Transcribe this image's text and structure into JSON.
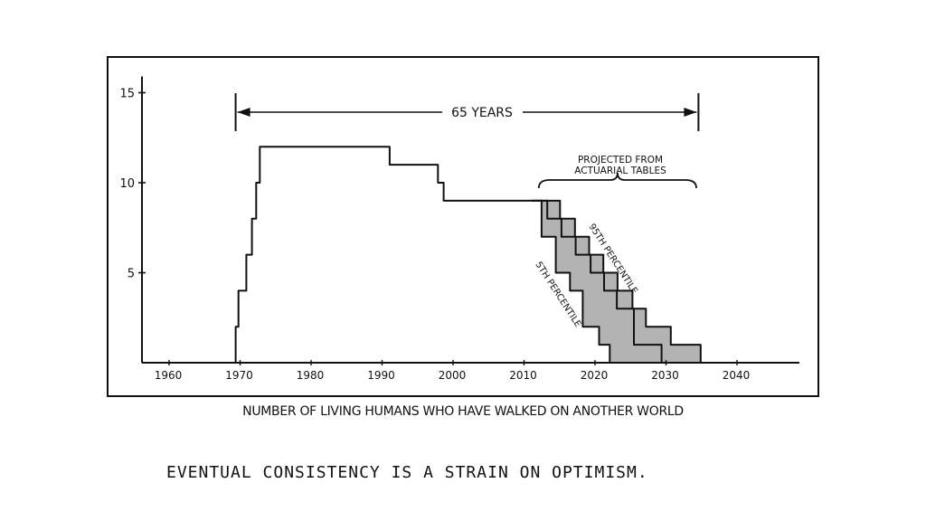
{
  "chart_data": {
    "type": "line",
    "xlabel": "NUMBER OF LIVING HUMANS WHO HAVE WALKED ON ANOTHER WORLD",
    "xlim": [
      1956,
      2048
    ],
    "ylim": [
      0,
      15.5
    ],
    "x_ticks": [
      1960,
      1970,
      1980,
      1990,
      2000,
      2010,
      2020,
      2030,
      2040
    ],
    "y_ticks": [
      5,
      10,
      15
    ],
    "grid": false,
    "series": [
      {
        "x": [
          1969.5,
          1969.5,
          1969.9,
          1969.9,
          1971.0,
          1971.0,
          1971.8,
          1971.8,
          1972.4,
          1972.4,
          1972.9,
          1972.9,
          1991.2,
          1991.2,
          1998.0,
          1998.0,
          1998.8,
          1998.8,
          2011.2
        ],
        "y": [
          0,
          2,
          2,
          4,
          4,
          6,
          6,
          8,
          8,
          10,
          10,
          12,
          12,
          11,
          11,
          10,
          10,
          9,
          9
        ]
      },
      {
        "name": "95TH PERCENTILE",
        "x": [
          2011.2,
          2015.2,
          2015.2,
          2017.3,
          2017.3,
          2019.3,
          2019.3,
          2021.3,
          2021.3,
          2023.3,
          2023.3,
          2025.4,
          2025.4,
          2027.3,
          2027.3,
          2030.8,
          2030.8,
          2035.0,
          2035.0
        ],
        "y": [
          9,
          9,
          8,
          8,
          7,
          7,
          6,
          6,
          5,
          5,
          4,
          4,
          3,
          3,
          2,
          2,
          1,
          1,
          0
        ]
      },
      {
        "name": "5TH PERCENTILE",
        "x": [
          2011.2,
          2012.6,
          2012.6,
          2014.6,
          2014.6,
          2016.6,
          2016.6,
          2018.4,
          2018.4,
          2020.7,
          2020.7,
          2022.2,
          2022.2
        ],
        "y": [
          9,
          9,
          7,
          7,
          5,
          5,
          4,
          4,
          2,
          2,
          1,
          1,
          0
        ]
      },
      {
        "x": [
          2011.2,
          2013.4,
          2013.4,
          2015.4,
          2015.4,
          2017.4,
          2017.4,
          2019.5,
          2019.5,
          2021.4,
          2021.4,
          2023.2,
          2023.2,
          2025.6,
          2025.6,
          2029.5,
          2029.5
        ],
        "y": [
          9,
          9,
          8,
          8,
          7,
          7,
          6,
          6,
          5,
          5,
          4,
          4,
          3,
          3,
          1,
          1,
          0
        ]
      }
    ],
    "annotations": {
      "span_label": "65 YEARS",
      "span_x": [
        1969.5,
        2034.7
      ],
      "projection_label_1": "PROJECTED FROM",
      "projection_label_2": "ACTUARIAL TABLES",
      "projection_x": [
        2012.2,
        2034.4
      ],
      "p95_label": "95TH PERCENTILE",
      "p5_label": "5TH PERCENTILE"
    }
  },
  "caption": "EVENTUAL CONSISTENCY IS A STRAIN ON OPTIMISM."
}
